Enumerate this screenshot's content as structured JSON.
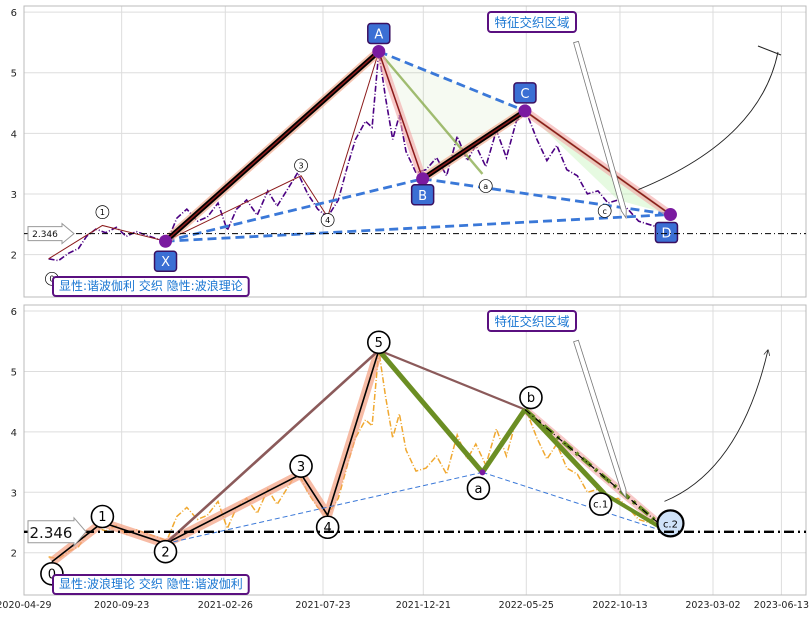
{
  "chart_data": {
    "type": "line",
    "x_ticks": [
      "2020-04-29",
      "2020-09-23",
      "2021-02-26",
      "2021-07-23",
      "2021-12-21",
      "2022-05-25",
      "2022-10-13",
      "2023-03-02",
      "2023-06-13"
    ],
    "x_range": [
      "2020-04-29",
      "2023-07-20"
    ],
    "ylim": [
      1.3,
      6.1
    ],
    "y_ticks": [
      2,
      3,
      4,
      5,
      6
    ],
    "grid": true,
    "reference_line": {
      "value": 2.346,
      "label": "2.346",
      "style": "dash-dot"
    },
    "price_series": {
      "points": [
        [
          "2020-06-05",
          1.93
        ],
        [
          "2020-06-20",
          1.9
        ],
        [
          "2020-07-05",
          2.02
        ],
        [
          "2020-07-20",
          2.1
        ],
        [
          "2020-08-01",
          2.3
        ],
        [
          "2020-08-15",
          2.42
        ],
        [
          "2020-08-30",
          2.36
        ],
        [
          "2020-09-15",
          2.45
        ],
        [
          "2020-09-30",
          2.3
        ],
        [
          "2020-10-15",
          2.38
        ],
        [
          "2020-10-30",
          2.32
        ],
        [
          "2020-11-15",
          2.26
        ],
        [
          "2020-11-30",
          2.2
        ],
        [
          "2020-12-15",
          2.6
        ],
        [
          "2020-12-30",
          2.75
        ],
        [
          "2021-01-15",
          2.55
        ],
        [
          "2021-01-30",
          2.62
        ],
        [
          "2021-02-15",
          2.85
        ],
        [
          "2021-03-01",
          2.4
        ],
        [
          "2021-03-15",
          2.75
        ],
        [
          "2021-03-30",
          2.9
        ],
        [
          "2021-04-15",
          2.65
        ],
        [
          "2021-05-01",
          3.05
        ],
        [
          "2021-05-15",
          2.8
        ],
        [
          "2021-06-01",
          3.1
        ],
        [
          "2021-06-15",
          3.35
        ],
        [
          "2021-06-30",
          3.0
        ],
        [
          "2021-07-15",
          2.75
        ],
        [
          "2021-07-30",
          2.62
        ],
        [
          "2021-08-15",
          2.9
        ],
        [
          "2021-08-30",
          3.5
        ],
        [
          "2021-09-10",
          3.9
        ],
        [
          "2021-09-25",
          4.2
        ],
        [
          "2021-10-05",
          4.1
        ],
        [
          "2021-10-15",
          5.35
        ],
        [
          "2021-10-25",
          4.6
        ],
        [
          "2021-11-05",
          3.9
        ],
        [
          "2021-11-15",
          4.3
        ],
        [
          "2021-11-25",
          3.7
        ],
        [
          "2021-12-10",
          3.35
        ],
        [
          "2021-12-25",
          3.4
        ],
        [
          "2022-01-10",
          3.6
        ],
        [
          "2022-01-25",
          3.3
        ],
        [
          "2022-02-10",
          3.95
        ],
        [
          "2022-02-25",
          3.55
        ],
        [
          "2022-03-10",
          3.8
        ],
        [
          "2022-03-25",
          3.45
        ],
        [
          "2022-04-10",
          4.05
        ],
        [
          "2022-04-25",
          3.6
        ],
        [
          "2022-05-10",
          4.2
        ],
        [
          "2022-05-25",
          4.35
        ],
        [
          "2022-06-10",
          3.9
        ],
        [
          "2022-06-25",
          3.55
        ],
        [
          "2022-07-10",
          3.8
        ],
        [
          "2022-07-25",
          3.4
        ],
        [
          "2022-08-10",
          3.3
        ],
        [
          "2022-08-25",
          3.0
        ],
        [
          "2022-09-10",
          3.05
        ],
        [
          "2022-09-25",
          2.85
        ],
        [
          "2022-10-10",
          2.9
        ],
        [
          "2022-10-25",
          2.75
        ],
        [
          "2022-11-10",
          2.55
        ],
        [
          "2022-11-25",
          2.5
        ],
        [
          "2022-12-10",
          2.45
        ],
        [
          "2022-12-25",
          2.4
        ]
      ]
    },
    "panels": [
      {
        "id": "top",
        "pattern_points": [
          {
            "label": "X",
            "date": "2020-11-28",
            "value": 2.22
          },
          {
            "label": "A",
            "date": "2021-10-15",
            "value": 5.35
          },
          {
            "label": "B",
            "date": "2021-12-20",
            "value": 3.25
          },
          {
            "label": "C",
            "date": "2022-05-23",
            "value": 4.37
          },
          {
            "label": "D",
            "date": "2022-12-28",
            "value": 2.66
          }
        ],
        "wave_labels": [
          {
            "label": "0",
            "date": "2020-06-10",
            "value": 1.6
          },
          {
            "label": "1",
            "date": "2020-08-25",
            "value": 2.7
          },
          {
            "label": "3",
            "date": "2021-06-20",
            "value": 3.47
          },
          {
            "label": "4",
            "date": "2021-07-30",
            "value": 2.57
          },
          {
            "label": "a",
            "date": "2022-03-25",
            "value": 3.13
          },
          {
            "label": "c",
            "date": "2022-09-20",
            "value": 2.72
          }
        ],
        "zone_label": "特征交织区域",
        "caption": "显性:谐波伽利 交织 隐性:波浪理论"
      },
      {
        "id": "bottom",
        "wave_points": [
          {
            "label": "0",
            "date": "2020-06-10",
            "value": 1.85
          },
          {
            "label": "1",
            "date": "2020-08-25",
            "value": 2.5
          },
          {
            "label": "2",
            "date": "2020-11-28",
            "value": 2.15
          },
          {
            "label": "3",
            "date": "2021-06-20",
            "value": 3.3
          },
          {
            "label": "4",
            "date": "2021-07-30",
            "value": 2.62
          },
          {
            "label": "5",
            "date": "2021-10-15",
            "value": 5.35
          },
          {
            "label": "a",
            "date": "2022-03-20",
            "value": 3.33
          },
          {
            "label": "b",
            "date": "2022-05-23",
            "value": 4.37
          },
          {
            "label": "c.1",
            "date": "2022-09-20",
            "value": 2.97
          },
          {
            "label": "c.2",
            "date": "2022-12-28",
            "value": 2.32
          }
        ],
        "zone_label": "特征交织区域",
        "caption": "显性:波浪理论 交织 隐性:谐波伽利"
      }
    ]
  }
}
